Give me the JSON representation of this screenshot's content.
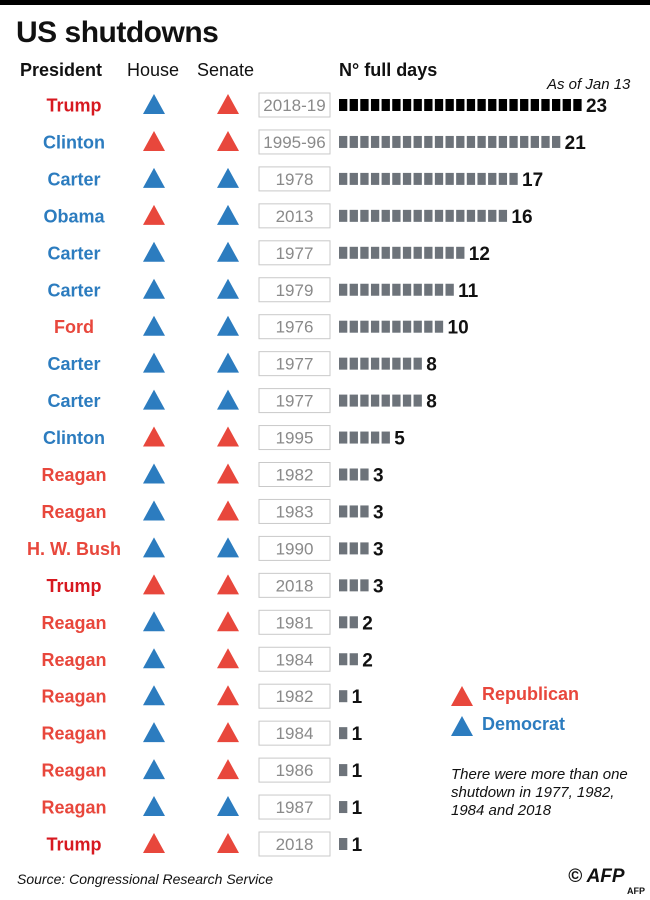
{
  "title": "US shutdowns",
  "headers": {
    "president": "President",
    "house": "House",
    "senate": "Senate",
    "days": "N° full days"
  },
  "as_of": "As of Jan 13",
  "legend": {
    "republican": "Republican",
    "democrat": "Democrat"
  },
  "note": "There were more than one shutdown in 1977, 1982, 1984 and 2018",
  "source": "Source: Congressional Research Service",
  "credit": "© AFP",
  "credit_small": "AFP",
  "colors": {
    "republican": "#e8473c",
    "democrat": "#2c7cbf",
    "trump_name": "#d71920",
    "bar_gray": "#6d737a",
    "bar_current": "#000000",
    "year_border": "#c9c9c9",
    "year_text": "#8a8a8a"
  },
  "chart_data": {
    "type": "bar",
    "ylabel": "N° full days",
    "rows": [
      {
        "president": "Trump",
        "party": "R",
        "house": "D",
        "senate": "R",
        "years": "2018-19",
        "days": 23,
        "ongoing": true
      },
      {
        "president": "Clinton",
        "party": "D",
        "house": "R",
        "senate": "R",
        "years": "1995-96",
        "days": 21
      },
      {
        "president": "Carter",
        "party": "D",
        "house": "D",
        "senate": "D",
        "years": "1978",
        "days": 17
      },
      {
        "president": "Obama",
        "party": "D",
        "house": "R",
        "senate": "D",
        "years": "2013",
        "days": 16
      },
      {
        "president": "Carter",
        "party": "D",
        "house": "D",
        "senate": "D",
        "years": "1977",
        "days": 12
      },
      {
        "president": "Carter",
        "party": "D",
        "house": "D",
        "senate": "D",
        "years": "1979",
        "days": 11
      },
      {
        "president": "Ford",
        "party": "R",
        "house": "D",
        "senate": "D",
        "years": "1976",
        "days": 10
      },
      {
        "president": "Carter",
        "party": "D",
        "house": "D",
        "senate": "D",
        "years": "1977",
        "days": 8
      },
      {
        "president": "Carter",
        "party": "D",
        "house": "D",
        "senate": "D",
        "years": "1977",
        "days": 8
      },
      {
        "president": "Clinton",
        "party": "D",
        "house": "R",
        "senate": "R",
        "years": "1995",
        "days": 5
      },
      {
        "president": "Reagan",
        "party": "R",
        "house": "D",
        "senate": "R",
        "years": "1982",
        "days": 3
      },
      {
        "president": "Reagan",
        "party": "R",
        "house": "D",
        "senate": "R",
        "years": "1983",
        "days": 3
      },
      {
        "president": "H. W. Bush",
        "party": "R",
        "house": "D",
        "senate": "D",
        "years": "1990",
        "days": 3
      },
      {
        "president": "Trump",
        "party": "R",
        "house": "R",
        "senate": "R",
        "years": "2018",
        "days": 3
      },
      {
        "president": "Reagan",
        "party": "R",
        "house": "D",
        "senate": "R",
        "years": "1981",
        "days": 2
      },
      {
        "president": "Reagan",
        "party": "R",
        "house": "D",
        "senate": "R",
        "years": "1984",
        "days": 2
      },
      {
        "president": "Reagan",
        "party": "R",
        "house": "D",
        "senate": "R",
        "years": "1982",
        "days": 1
      },
      {
        "president": "Reagan",
        "party": "R",
        "house": "D",
        "senate": "R",
        "years": "1984",
        "days": 1
      },
      {
        "president": "Reagan",
        "party": "R",
        "house": "D",
        "senate": "R",
        "years": "1986",
        "days": 1
      },
      {
        "president": "Reagan",
        "party": "R",
        "house": "D",
        "senate": "D",
        "years": "1987",
        "days": 1
      },
      {
        "president": "Trump",
        "party": "R",
        "house": "R",
        "senate": "R",
        "years": "2018",
        "days": 1
      }
    ]
  }
}
